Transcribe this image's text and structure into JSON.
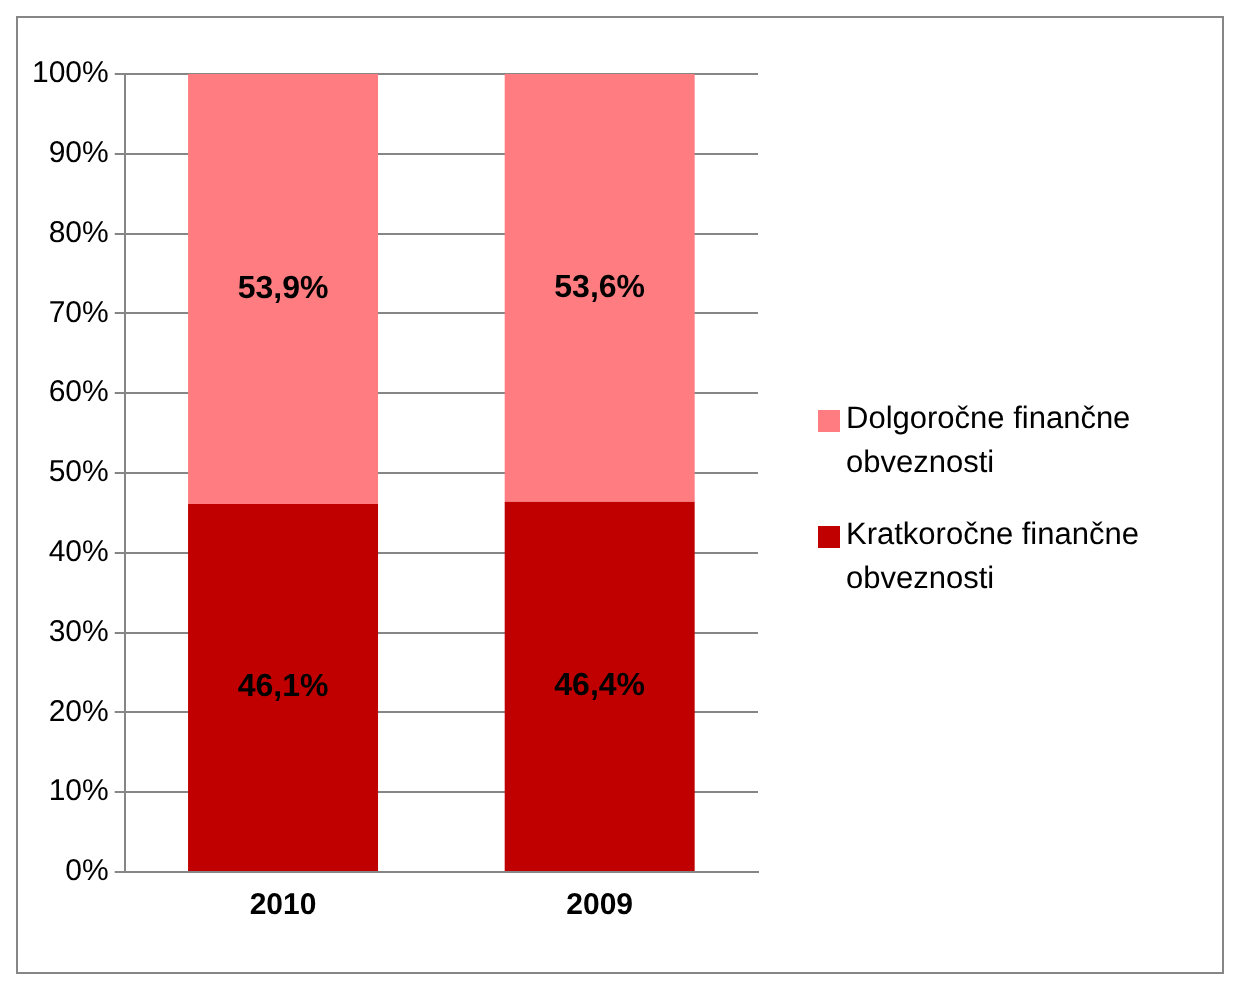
{
  "chart_data": {
    "type": "bar",
    "stacked": true,
    "categories": [
      "2010",
      "2009"
    ],
    "series": [
      {
        "name": "Kratkoročne finančne obveznosti",
        "color": "#c00000",
        "values": [
          46.1,
          46.4
        ],
        "value_labels": [
          "46,1%",
          "46,4%"
        ]
      },
      {
        "name": "Dolgoročne finančne obveznosti",
        "color": "#ff7c80",
        "values": [
          53.9,
          53.6
        ],
        "value_labels": [
          "53,9%",
          "53,6%"
        ]
      }
    ],
    "ylim": [
      0,
      100
    ],
    "yticks": [
      {
        "value": 0,
        "label": "0%"
      },
      {
        "value": 10,
        "label": "10%"
      },
      {
        "value": 20,
        "label": "20%"
      },
      {
        "value": 30,
        "label": "30%"
      },
      {
        "value": 40,
        "label": "40%"
      },
      {
        "value": 50,
        "label": "50%"
      },
      {
        "value": 60,
        "label": "60%"
      },
      {
        "value": 70,
        "label": "70%"
      },
      {
        "value": 80,
        "label": "80%"
      },
      {
        "value": 90,
        "label": "90%"
      },
      {
        "value": 100,
        "label": "100%"
      }
    ],
    "grid": "y",
    "legend": "right"
  }
}
